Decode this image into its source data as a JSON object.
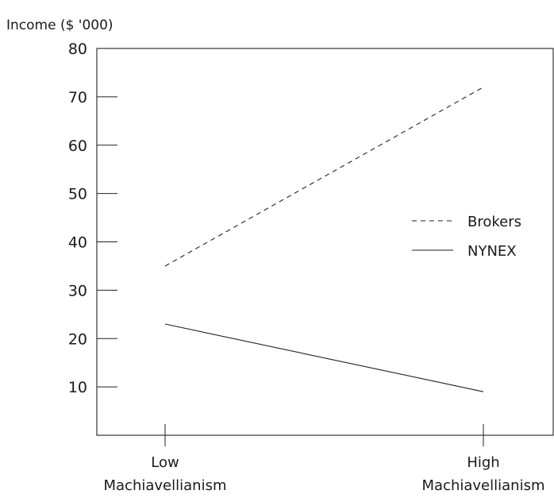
{
  "chart_data": {
    "type": "line",
    "title": "",
    "ylabel": "Income ($ '000)",
    "xlabel": "",
    "ylim": [
      0,
      80
    ],
    "yticks": [
      10,
      20,
      30,
      40,
      50,
      60,
      70,
      80
    ],
    "categories": [
      [
        "Low",
        "Machiavellianism"
      ],
      [
        "High",
        "Machiavellianism"
      ]
    ],
    "series": [
      {
        "name": "Brokers",
        "values": [
          35,
          72
        ],
        "style": "dashed"
      },
      {
        "name": "NYNEX",
        "values": [
          23,
          9
        ],
        "style": "solid"
      }
    ],
    "legend_position": "right",
    "grid": false
  }
}
